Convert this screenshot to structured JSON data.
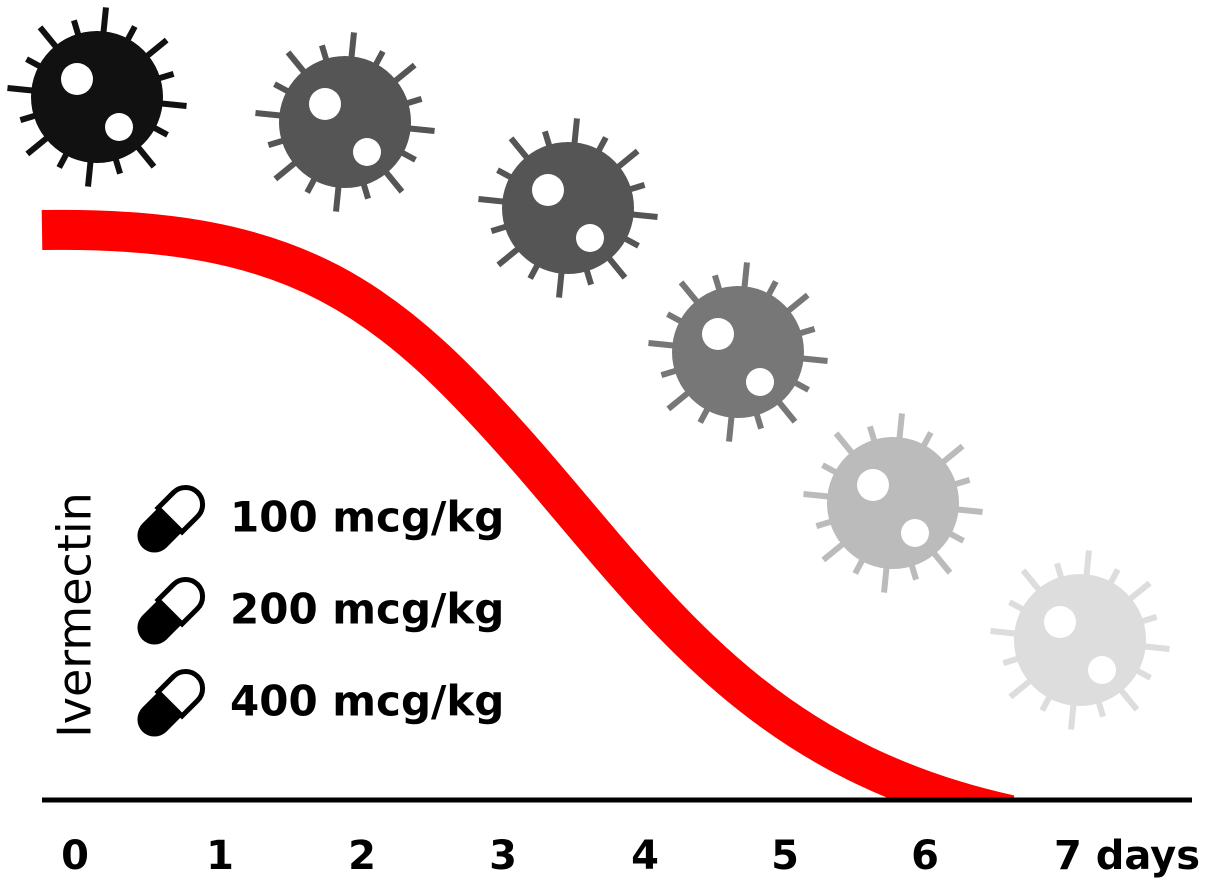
{
  "drug": {
    "name": "Ivermectin",
    "doses": [
      "100 mcg/kg",
      "200 mcg/kg",
      "400 mcg/kg"
    ]
  },
  "axis": {
    "labels": [
      "0",
      "1",
      "2",
      "3",
      "4",
      "5",
      "6",
      "7 days"
    ]
  }
}
